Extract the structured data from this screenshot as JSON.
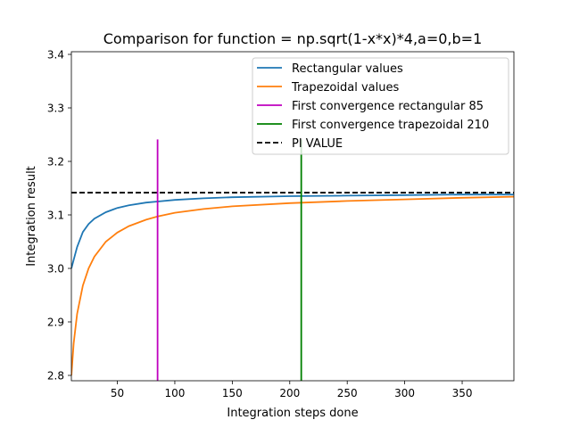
{
  "chart_data": {
    "type": "line",
    "title": "Comparison for function = np.sqrt(1-x*x)*4,a=0,b=1",
    "xlabel": "Integration steps done",
    "ylabel": "Integration result",
    "xlim": [
      10,
      395
    ],
    "ylim": [
      2.79,
      3.405
    ],
    "xticks": [
      50,
      100,
      150,
      200,
      250,
      300,
      350
    ],
    "yticks": [
      2.8,
      2.9,
      3.0,
      3.1,
      3.2,
      3.3,
      3.4
    ],
    "xtick_labels": [
      "50",
      "100",
      "150",
      "200",
      "250",
      "300",
      "350"
    ],
    "ytick_labels": [
      "2.8",
      "2.9",
      "3.0",
      "3.1",
      "3.2",
      "3.3",
      "3.4"
    ],
    "legend_position": "top-right",
    "series": [
      {
        "name": "Rectangular values",
        "color": "#1f77b4",
        "x": [
          10,
          12,
          15,
          20,
          25,
          30,
          40,
          50,
          60,
          75,
          85,
          100,
          125,
          150,
          200,
          250,
          300,
          350,
          395
        ],
        "y": [
          3.0,
          3.016,
          3.04,
          3.068,
          3.083,
          3.093,
          3.105,
          3.113,
          3.118,
          3.123,
          3.125,
          3.128,
          3.131,
          3.133,
          3.135,
          3.136,
          3.137,
          3.138,
          3.138
        ]
      },
      {
        "name": "Trapezoidal values",
        "color": "#ff7f0e",
        "x": [
          10,
          12,
          15,
          20,
          25,
          30,
          40,
          50,
          60,
          75,
          85,
          100,
          125,
          150,
          200,
          250,
          300,
          350,
          395
        ],
        "y": [
          2.8,
          2.86,
          2.915,
          2.968,
          3.0,
          3.022,
          3.05,
          3.067,
          3.079,
          3.091,
          3.097,
          3.104,
          3.111,
          3.116,
          3.122,
          3.126,
          3.129,
          3.132,
          3.134
        ]
      }
    ],
    "vertical_lines": [
      {
        "name": "First convergence rectangular 85",
        "color": "#bf00bf",
        "x": 85,
        "y_range": [
          2.79,
          3.241
        ]
      },
      {
        "name": "First convergence trapezoidal 210",
        "color": "#008000",
        "x": 210,
        "y_range": [
          2.79,
          3.241
        ]
      }
    ],
    "horizontal_lines": [
      {
        "name": "PI VALUE",
        "color": "#000000",
        "y": 3.1416,
        "dashed": true
      }
    ]
  }
}
